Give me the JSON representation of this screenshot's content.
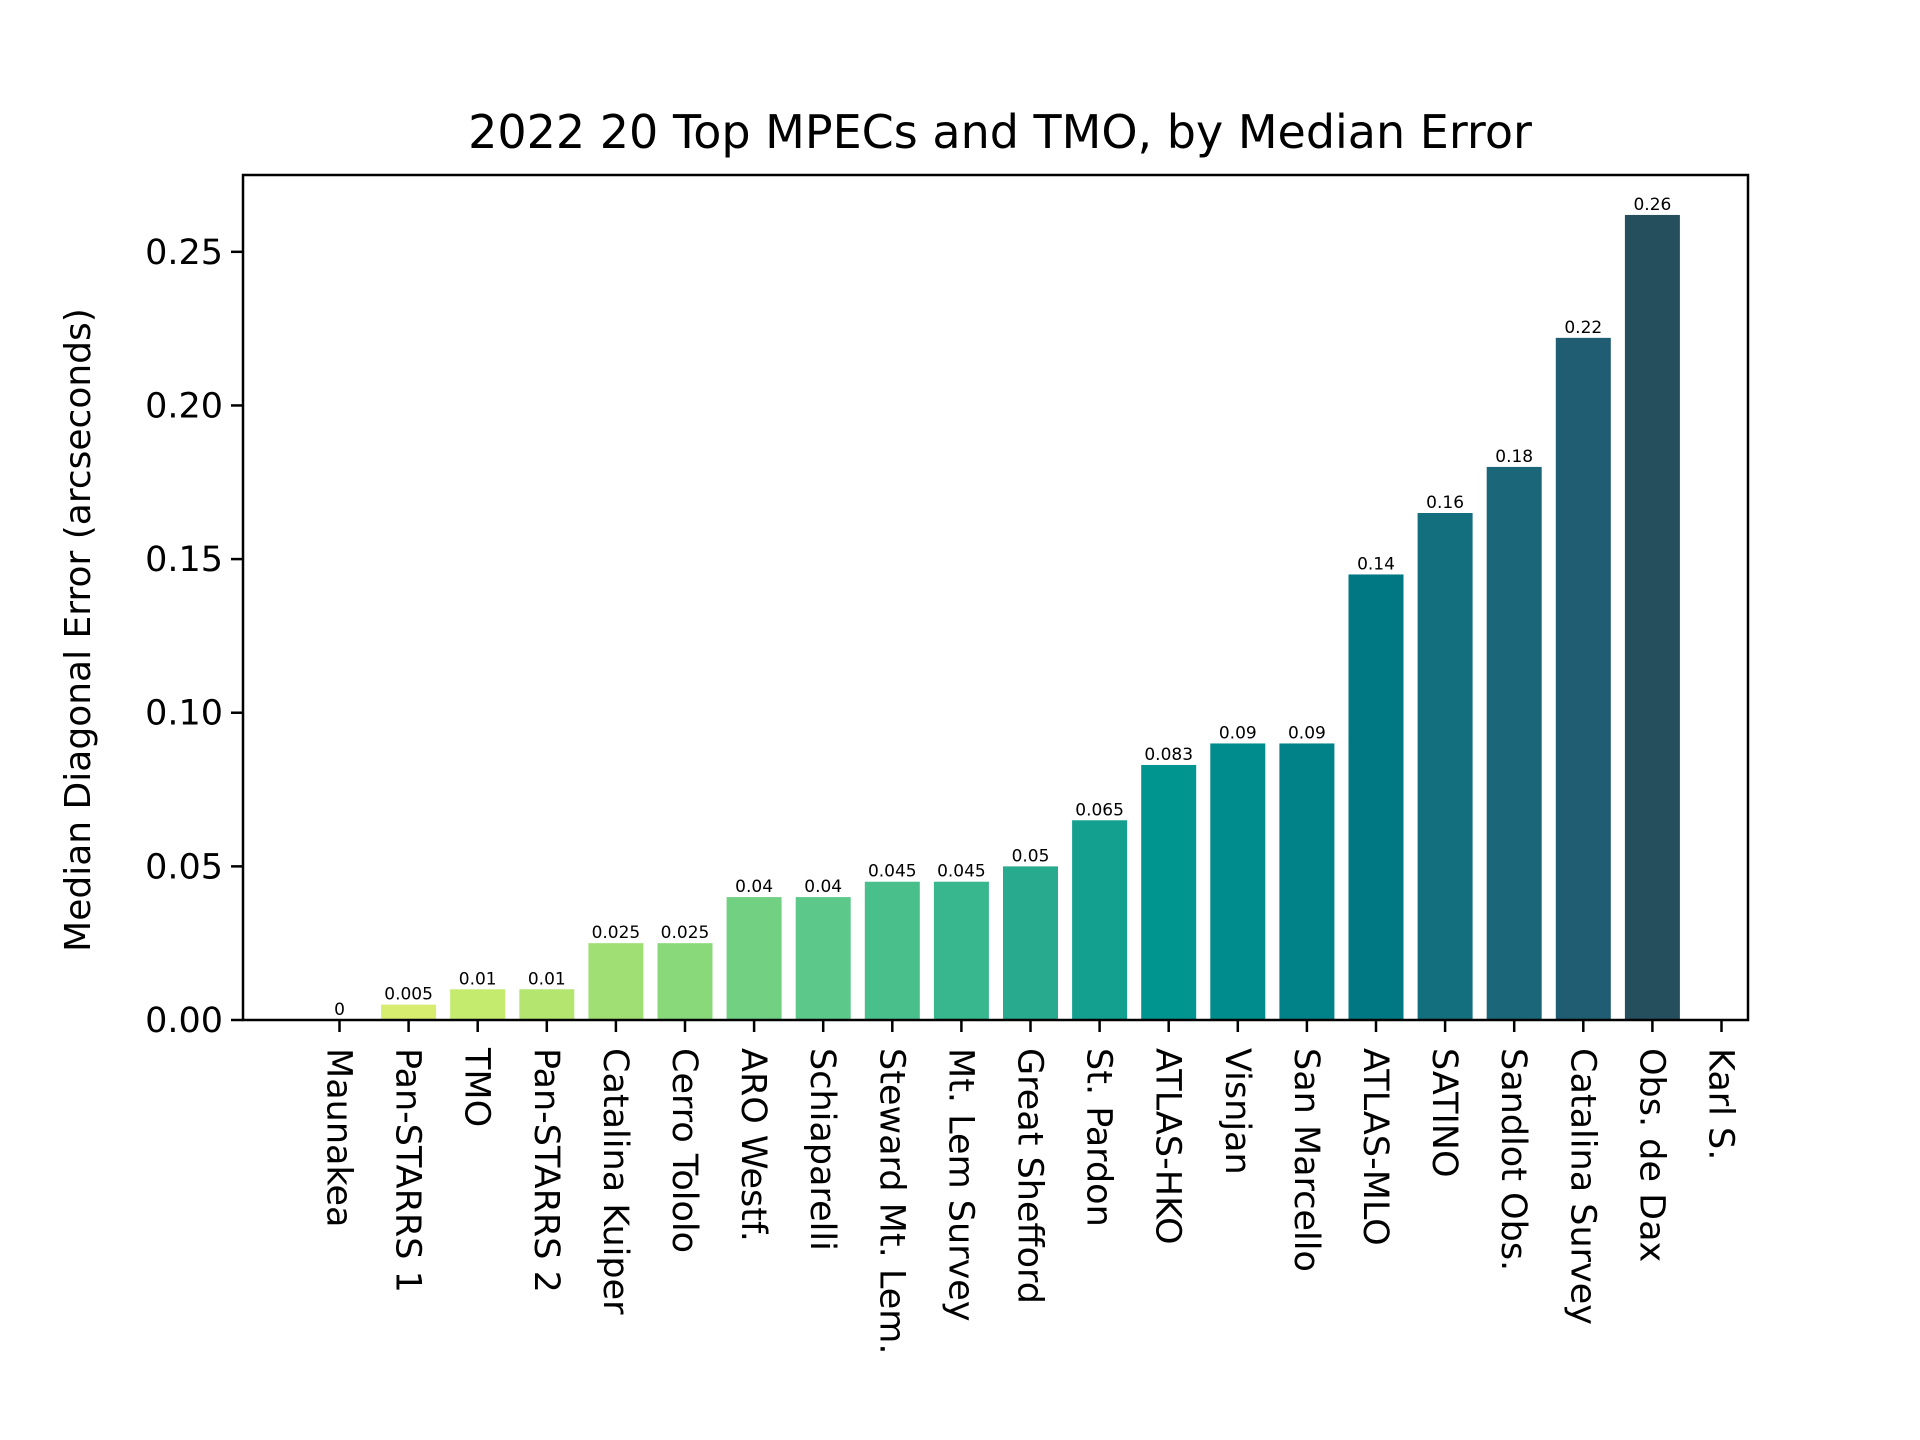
{
  "chart_data": {
    "type": "bar",
    "title": "2022 20 Top MPECs and TMO, by Median Error",
    "xlabel": "",
    "ylabel": "Median Diagonal Error (arcseconds)",
    "ylim": [
      0,
      0.275
    ],
    "yticks": [
      "0.00",
      "0.05",
      "0.10",
      "0.15",
      "0.20",
      "0.25"
    ],
    "categories": [
      "Maunakea",
      "Pan-STARRS 1",
      "TMO",
      "Pan-STARRS 2",
      "Catalina Kuiper",
      "Cerro Tololo",
      "ARO Westf.",
      "Schiaparelli",
      "Steward Mt. Lem.",
      "Mt. Lem Survey",
      "Great Shefford",
      "St. Pardon",
      "ATLAS-HKO",
      "Visnjan",
      "San Marcello",
      "ATLAS-MLO",
      "SATINO",
      "Sandlot Obs.",
      "Catalina Survey",
      "Obs. de Dax",
      "Karl S."
    ],
    "values": [
      0,
      0.005,
      0.01,
      0.01,
      0.025,
      0.025,
      0.04,
      0.04,
      0.045,
      0.045,
      0.05,
      0.065,
      0.083,
      0.09,
      0.09,
      0.145,
      0.165,
      0.18,
      0.222,
      0.262,
      null
    ],
    "data_labels": [
      "0",
      "0.005",
      "0.01",
      "0.01",
      "0.025",
      "0.025",
      "0.04",
      "0.04",
      "0.045",
      "0.045",
      "0.05",
      "0.065",
      "0.083",
      "0.09",
      "0.09",
      "0.14",
      "0.16",
      "0.18",
      "0.22",
      "0.26",
      ""
    ],
    "colors": [
      "#d6ed70",
      "#d6ed70",
      "#c5eb6e",
      "#b4e56f",
      "#9fdf73",
      "#89d97a",
      "#71d082",
      "#5cc88a",
      "#49bf8c",
      "#38b68e",
      "#27aa8e",
      "#14a08f",
      "#00968f",
      "#008c8c",
      "#008288",
      "#007883",
      "#136f7e",
      "#1b6679",
      "#205d72",
      "#264f5e",
      "#264f5e"
    ],
    "grid": false,
    "legend": "none"
  }
}
